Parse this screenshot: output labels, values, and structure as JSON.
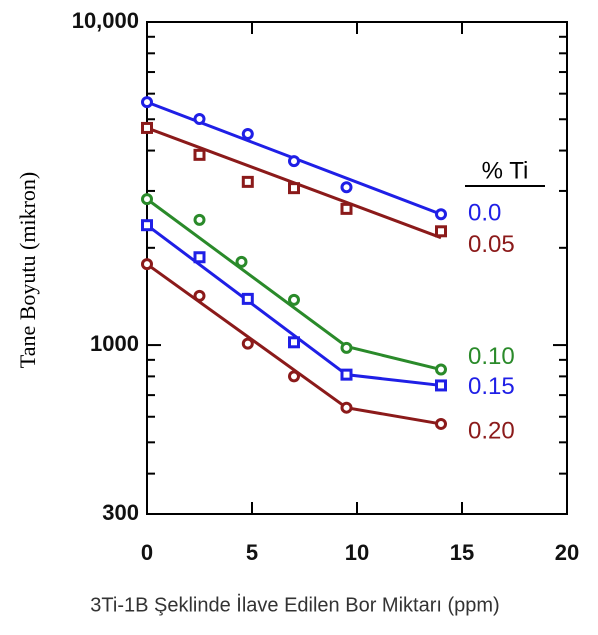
{
  "chart_data": {
    "type": "scatter",
    "xlabel": "3Ti-1B Şeklinde İlave Edilen Bor Miktarı (ppm)",
    "ylabel": "Tane Boyutu (mikron)",
    "legend_title": "% Ti",
    "log_y": true,
    "xlim": [
      0,
      20
    ],
    "xticks": [
      0,
      5,
      10,
      15,
      20
    ],
    "ylim": [
      300,
      10000
    ],
    "yticks": [
      300,
      1000,
      {
        "value": 10000,
        "label": "10,000"
      }
    ],
    "yminor": [
      400,
      500,
      600,
      700,
      800,
      900,
      2000,
      3000,
      4000,
      5000,
      6000,
      7000,
      8000,
      9000
    ],
    "series": [
      {
        "name": "0.0",
        "color": "#1f1fe6",
        "marker": "circle",
        "x": [
          0,
          2.5,
          4.8,
          7,
          9.5,
          14
        ],
        "values": [
          5650,
          5010,
          4500,
          3710,
          3080,
          2540
        ],
        "fit_x": [
          0,
          14
        ],
        "fit": [
          5650,
          2540
        ]
      },
      {
        "name": "0.05",
        "color": "#8b1a1a",
        "marker": "square",
        "x": [
          0,
          2.5,
          4.8,
          7,
          9.5,
          14
        ],
        "values": [
          4700,
          3880,
          3200,
          3060,
          2640,
          2250
        ],
        "fit_x": [
          0,
          14
        ],
        "fit": [
          4700,
          2150
        ]
      },
      {
        "name": "0.10",
        "color": "#2a8a2a",
        "marker": "circle",
        "x": [
          0,
          2.5,
          4.5,
          7,
          9.5,
          14
        ],
        "values": [
          2830,
          2440,
          1810,
          1380,
          980,
          840
        ],
        "fit_x": [
          0,
          9.5,
          14
        ],
        "fit": [
          2830,
          990,
          840
        ]
      },
      {
        "name": "0.15",
        "color": "#1f1fe6",
        "marker": "square",
        "x": [
          0,
          2.5,
          4.8,
          7,
          9.5,
          14
        ],
        "values": [
          2350,
          1870,
          1390,
          1020,
          810,
          750
        ],
        "fit_x": [
          0,
          9.5,
          14
        ],
        "fit": [
          2350,
          810,
          750
        ]
      },
      {
        "name": "0.20",
        "color": "#8b1a1a",
        "marker": "circle",
        "x": [
          0,
          2.5,
          4.8,
          7,
          9.5,
          14
        ],
        "values": [
          1780,
          1420,
          1010,
          800,
          640,
          570
        ],
        "fit_x": [
          0,
          9.5,
          14
        ],
        "fit": [
          1780,
          640,
          570
        ]
      }
    ]
  }
}
